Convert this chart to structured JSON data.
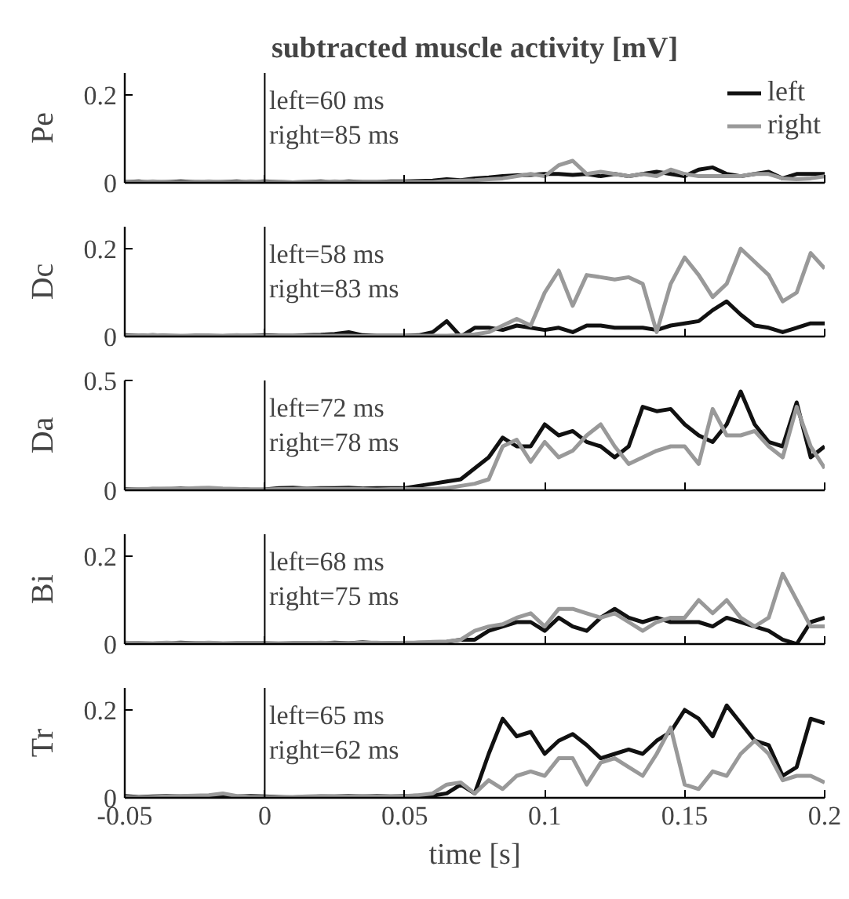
{
  "chart_data": [
    {
      "type": "line",
      "title": "subtracted muscle activity [mV]",
      "ylabel": "Pe",
      "xlim": [
        -0.05,
        0.2
      ],
      "xticks": [
        -0.05,
        0,
        0.05,
        0.1,
        0.15,
        0.2
      ],
      "ylim": [
        0,
        0.25
      ],
      "yticks": [
        0,
        0.2
      ],
      "tick_labels": "y",
      "legend": "top right",
      "grid": false,
      "ref_lines": [
        {
          "axis": "x",
          "value": 0,
          "color": "#000000"
        }
      ],
      "annotations": [
        "left=60 ms",
        "right=85 ms"
      ],
      "x": [
        -0.05,
        -0.045,
        -0.04,
        -0.035,
        -0.03,
        -0.025,
        -0.02,
        -0.015,
        -0.01,
        -0.005,
        0,
        0.005,
        0.01,
        0.015,
        0.02,
        0.025,
        0.03,
        0.035,
        0.04,
        0.045,
        0.05,
        0.055,
        0.06,
        0.065,
        0.07,
        0.075,
        0.08,
        0.085,
        0.09,
        0.095,
        0.1,
        0.105,
        0.11,
        0.115,
        0.12,
        0.125,
        0.13,
        0.135,
        0.14,
        0.145,
        0.15,
        0.155,
        0.16,
        0.165,
        0.17,
        0.175,
        0.18,
        0.185,
        0.19,
        0.195,
        0.2
      ],
      "series": [
        {
          "name": "left",
          "color": "#111111",
          "values": [
            0.002,
            0.003,
            0.001,
            0.002,
            0.003,
            0.002,
            0.001,
            0.002,
            0.003,
            0.002,
            0.003,
            0.002,
            0.001,
            0.002,
            0.003,
            0.002,
            0.003,
            0.002,
            0.002,
            0.003,
            0.003,
            0.004,
            0.005,
            0.008,
            0.006,
            0.01,
            0.012,
            0.015,
            0.017,
            0.018,
            0.02,
            0.02,
            0.018,
            0.02,
            0.015,
            0.02,
            0.015,
            0.02,
            0.025,
            0.02,
            0.015,
            0.03,
            0.035,
            0.02,
            0.015,
            0.02,
            0.025,
            0.01,
            0.02,
            0.02,
            0.02
          ]
        },
        {
          "name": "right",
          "color": "#999999",
          "values": [
            0.002,
            0.002,
            0.003,
            0.002,
            0.001,
            0.002,
            0.003,
            0.002,
            0.002,
            0.003,
            0.002,
            0.002,
            0.001,
            0.002,
            0.002,
            0.003,
            0.002,
            0.002,
            0.002,
            0.002,
            0.002,
            0.002,
            0.002,
            0.004,
            0.005,
            0.006,
            0.008,
            0.01,
            0.015,
            0.02,
            0.015,
            0.04,
            0.05,
            0.02,
            0.025,
            0.02,
            0.015,
            0.02,
            0.015,
            0.03,
            0.02,
            0.015,
            0.015,
            0.015,
            0.015,
            0.02,
            0.02,
            0.01,
            0.008,
            0.01,
            0.015
          ]
        }
      ]
    },
    {
      "type": "line",
      "ylabel": "Dc",
      "xlim": [
        -0.05,
        0.2
      ],
      "xticks": [
        -0.05,
        0,
        0.05,
        0.1,
        0.15,
        0.2
      ],
      "ylim": [
        0,
        0.25
      ],
      "yticks": [
        0,
        0.2
      ],
      "tick_labels": "y",
      "grid": false,
      "ref_lines": [
        {
          "axis": "x",
          "value": 0,
          "color": "#000000"
        }
      ],
      "annotations": [
        "left=58 ms",
        "right=83 ms"
      ],
      "x": [
        -0.05,
        -0.045,
        -0.04,
        -0.035,
        -0.03,
        -0.025,
        -0.02,
        -0.015,
        -0.01,
        -0.005,
        0,
        0.005,
        0.01,
        0.015,
        0.02,
        0.025,
        0.03,
        0.035,
        0.04,
        0.045,
        0.05,
        0.055,
        0.06,
        0.065,
        0.07,
        0.075,
        0.08,
        0.085,
        0.09,
        0.095,
        0.1,
        0.105,
        0.11,
        0.115,
        0.12,
        0.125,
        0.13,
        0.135,
        0.14,
        0.145,
        0.15,
        0.155,
        0.16,
        0.165,
        0.17,
        0.175,
        0.18,
        0.185,
        0.19,
        0.195,
        0.2
      ],
      "series": [
        {
          "color": "#111111",
          "values": [
            0.003,
            0.002,
            0.003,
            0.002,
            0.001,
            0.002,
            0.002,
            0.001,
            0.002,
            0.002,
            0.003,
            0.002,
            0.002,
            0.003,
            0.004,
            0.006,
            0.01,
            0.003,
            0.002,
            0.002,
            0.002,
            0.003,
            0.01,
            0.035,
            0.0,
            0.02,
            0.02,
            0.015,
            0.025,
            0.02,
            0.015,
            0.02,
            0.01,
            0.025,
            0.025,
            0.02,
            0.02,
            0.02,
            0.015,
            0.025,
            0.03,
            0.035,
            0.06,
            0.08,
            0.05,
            0.025,
            0.02,
            0.01,
            0.02,
            0.03,
            0.03
          ]
        },
        {
          "color": "#999999",
          "values": [
            0.002,
            0.002,
            0.003,
            0.002,
            0.002,
            0.001,
            0.002,
            0.002,
            0.003,
            0.002,
            0.002,
            0.001,
            0.002,
            0.002,
            0.002,
            0.002,
            0.002,
            0.001,
            0.002,
            0.002,
            0.002,
            0.002,
            0.002,
            0.002,
            0.003,
            0.005,
            0.01,
            0.025,
            0.04,
            0.025,
            0.1,
            0.15,
            0.07,
            0.14,
            0.135,
            0.13,
            0.135,
            0.12,
            0.01,
            0.12,
            0.18,
            0.14,
            0.09,
            0.12,
            0.2,
            0.17,
            0.14,
            0.08,
            0.1,
            0.19,
            0.155
          ]
        }
      ]
    },
    {
      "type": "line",
      "ylabel": "Da",
      "xlim": [
        -0.05,
        0.2
      ],
      "xticks": [
        -0.05,
        0,
        0.05,
        0.1,
        0.15,
        0.2
      ],
      "ylim": [
        0,
        0.5
      ],
      "yticks": [
        0,
        0.5
      ],
      "tick_labels": "y",
      "grid": false,
      "ref_lines": [
        {
          "axis": "x",
          "value": 0,
          "color": "#000000"
        }
      ],
      "annotations": [
        "left=72 ms",
        "right=78 ms"
      ],
      "x": [
        -0.05,
        -0.045,
        -0.04,
        -0.035,
        -0.03,
        -0.025,
        -0.02,
        -0.015,
        -0.01,
        -0.005,
        0,
        0.005,
        0.01,
        0.015,
        0.02,
        0.025,
        0.03,
        0.035,
        0.04,
        0.045,
        0.05,
        0.055,
        0.06,
        0.065,
        0.07,
        0.075,
        0.08,
        0.085,
        0.09,
        0.095,
        0.1,
        0.105,
        0.11,
        0.115,
        0.12,
        0.125,
        0.13,
        0.135,
        0.14,
        0.145,
        0.15,
        0.155,
        0.16,
        0.165,
        0.17,
        0.175,
        0.18,
        0.185,
        0.19,
        0.195,
        0.2
      ],
      "series": [
        {
          "color": "#111111",
          "values": [
            0.005,
            0.004,
            0.006,
            0.005,
            0.008,
            0.005,
            0.006,
            0.004,
            0.005,
            0.003,
            0.004,
            0.01,
            0.012,
            0.008,
            0.01,
            0.01,
            0.012,
            0.008,
            0.01,
            0.01,
            0.01,
            0.02,
            0.03,
            0.04,
            0.05,
            0.1,
            0.15,
            0.24,
            0.2,
            0.2,
            0.3,
            0.25,
            0.27,
            0.22,
            0.2,
            0.15,
            0.2,
            0.38,
            0.36,
            0.37,
            0.3,
            0.25,
            0.22,
            0.3,
            0.45,
            0.3,
            0.22,
            0.2,
            0.4,
            0.15,
            0.2
          ]
        },
        {
          "color": "#999999",
          "values": [
            0.004,
            0.005,
            0.006,
            0.008,
            0.006,
            0.01,
            0.012,
            0.008,
            0.006,
            0.004,
            0.004,
            0.005,
            0.006,
            0.008,
            0.006,
            0.005,
            0.006,
            0.005,
            0.004,
            0.005,
            0.006,
            0.005,
            0.005,
            0.01,
            0.02,
            0.03,
            0.05,
            0.2,
            0.23,
            0.13,
            0.22,
            0.15,
            0.18,
            0.25,
            0.3,
            0.2,
            0.12,
            0.15,
            0.18,
            0.2,
            0.2,
            0.12,
            0.37,
            0.25,
            0.25,
            0.27,
            0.2,
            0.15,
            0.38,
            0.2,
            0.1
          ]
        }
      ]
    },
    {
      "type": "line",
      "ylabel": "Bi",
      "xlim": [
        -0.05,
        0.2
      ],
      "xticks": [
        -0.05,
        0,
        0.05,
        0.1,
        0.15,
        0.2
      ],
      "ylim": [
        0,
        0.25
      ],
      "yticks": [
        0,
        0.2
      ],
      "tick_labels": "y",
      "grid": false,
      "ref_lines": [
        {
          "axis": "x",
          "value": 0,
          "color": "#000000"
        }
      ],
      "annotations": [
        "left=68 ms",
        "right=75 ms"
      ],
      "x": [
        -0.05,
        -0.045,
        -0.04,
        -0.035,
        -0.03,
        -0.025,
        -0.02,
        -0.015,
        -0.01,
        -0.005,
        0,
        0.005,
        0.01,
        0.015,
        0.02,
        0.025,
        0.03,
        0.035,
        0.04,
        0.045,
        0.05,
        0.055,
        0.06,
        0.065,
        0.07,
        0.075,
        0.08,
        0.085,
        0.09,
        0.095,
        0.1,
        0.105,
        0.11,
        0.115,
        0.12,
        0.125,
        0.13,
        0.135,
        0.14,
        0.145,
        0.15,
        0.155,
        0.16,
        0.165,
        0.17,
        0.175,
        0.18,
        0.185,
        0.19,
        0.195,
        0.2
      ],
      "series": [
        {
          "color": "#111111",
          "values": [
            0.002,
            0.002,
            0.001,
            0.002,
            0.003,
            0.002,
            0.002,
            0.001,
            0.002,
            0.002,
            0.002,
            0.001,
            0.002,
            0.002,
            0.002,
            0.003,
            0.002,
            0.004,
            0.002,
            0.002,
            0.002,
            0.003,
            0.003,
            0.005,
            0.01,
            0.01,
            0.03,
            0.04,
            0.05,
            0.05,
            0.03,
            0.06,
            0.04,
            0.03,
            0.06,
            0.08,
            0.06,
            0.05,
            0.06,
            0.05,
            0.05,
            0.05,
            0.04,
            0.06,
            0.05,
            0.04,
            0.03,
            0.01,
            0.0,
            0.05,
            0.06
          ]
        },
        {
          "color": "#999999",
          "values": [
            0.003,
            0.002,
            0.002,
            0.003,
            0.002,
            0.002,
            0.003,
            0.002,
            0.002,
            0.002,
            0.002,
            0.002,
            0.002,
            0.002,
            0.003,
            0.002,
            0.002,
            0.003,
            0.003,
            0.002,
            0.003,
            0.003,
            0.005,
            0.006,
            0.01,
            0.03,
            0.04,
            0.045,
            0.06,
            0.07,
            0.04,
            0.08,
            0.08,
            0.07,
            0.06,
            0.07,
            0.05,
            0.03,
            0.05,
            0.06,
            0.06,
            0.1,
            0.07,
            0.1,
            0.06,
            0.04,
            0.06,
            0.16,
            0.1,
            0.04,
            0.04
          ]
        }
      ]
    },
    {
      "type": "line",
      "ylabel": "Tr",
      "xlabel": "time [s]",
      "xlim": [
        -0.05,
        0.2
      ],
      "xticks": [
        -0.05,
        0,
        0.05,
        0.1,
        0.15,
        0.2
      ],
      "ylim": [
        0,
        0.25
      ],
      "yticks": [
        0,
        0.2
      ],
      "grid": false,
      "ref_lines": [
        {
          "axis": "x",
          "value": 0,
          "color": "#000000"
        }
      ],
      "annotations": [
        "left=65 ms",
        "right=62 ms"
      ],
      "x": [
        -0.05,
        -0.045,
        -0.04,
        -0.035,
        -0.03,
        -0.025,
        -0.02,
        -0.015,
        -0.01,
        -0.005,
        0,
        0.005,
        0.01,
        0.015,
        0.02,
        0.025,
        0.03,
        0.035,
        0.04,
        0.045,
        0.05,
        0.055,
        0.06,
        0.065,
        0.07,
        0.075,
        0.08,
        0.085,
        0.09,
        0.095,
        0.1,
        0.105,
        0.11,
        0.115,
        0.12,
        0.125,
        0.13,
        0.135,
        0.14,
        0.145,
        0.15,
        0.155,
        0.16,
        0.165,
        0.17,
        0.175,
        0.18,
        0.185,
        0.19,
        0.195,
        0.2
      ],
      "series": [
        {
          "color": "#111111",
          "values": [
            0.004,
            0.002,
            0.003,
            0.004,
            0.003,
            0.004,
            0.004,
            0.004,
            0.003,
            0.004,
            0.003,
            0.002,
            0.001,
            0.002,
            0.003,
            0.003,
            0.004,
            0.003,
            0.004,
            0.003,
            0.004,
            0.005,
            0.005,
            0.01,
            0.03,
            0.01,
            0.1,
            0.18,
            0.14,
            0.15,
            0.1,
            0.13,
            0.145,
            0.12,
            0.09,
            0.1,
            0.11,
            0.1,
            0.13,
            0.15,
            0.2,
            0.18,
            0.14,
            0.21,
            0.17,
            0.13,
            0.12,
            0.05,
            0.07,
            0.18,
            0.17
          ]
        },
        {
          "color": "#999999",
          "values": [
            0.002,
            0.001,
            0.002,
            0.003,
            0.004,
            0.005,
            0.006,
            0.01,
            0.004,
            0.002,
            0.002,
            0.001,
            0.002,
            0.003,
            0.004,
            0.003,
            0.003,
            0.004,
            0.003,
            0.003,
            0.004,
            0.006,
            0.01,
            0.03,
            0.035,
            0.01,
            0.04,
            0.02,
            0.05,
            0.06,
            0.05,
            0.09,
            0.09,
            0.03,
            0.08,
            0.09,
            0.07,
            0.05,
            0.1,
            0.16,
            0.03,
            0.02,
            0.06,
            0.05,
            0.1,
            0.13,
            0.1,
            0.04,
            0.05,
            0.05,
            0.035
          ]
        }
      ]
    }
  ]
}
